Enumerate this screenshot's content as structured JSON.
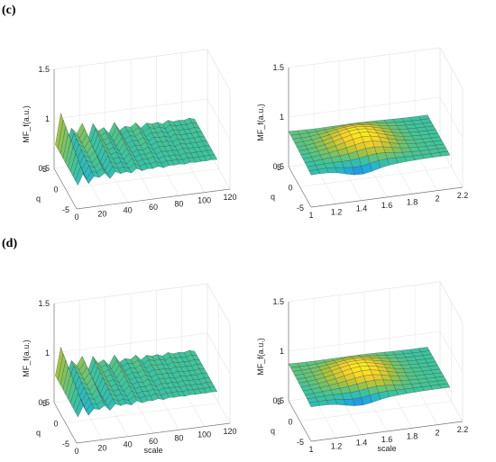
{
  "panel_labels": [
    "(c)",
    "(d)"
  ],
  "chart_data": [
    {
      "id": "c-left",
      "type": "surface3d",
      "panel": "(c)",
      "title": "",
      "xlabel": "",
      "ylabel": "q",
      "zlabel": "MF_f(a.u.)",
      "xlim": [
        0,
        120
      ],
      "xticks": [
        "0",
        "20",
        "40",
        "60",
        "80",
        "100",
        "120"
      ],
      "ylim": [
        -5,
        5
      ],
      "yticks": [
        "-5",
        "0",
        "5"
      ],
      "zlim": [
        0.5,
        1.5
      ],
      "zticks": [
        "0.5",
        "1",
        "1.5"
      ],
      "surface": {
        "style": "jagged",
        "x_range": [
          1,
          110
        ],
        "q_range": [
          -5,
          5
        ],
        "base": 0.82,
        "amplitude": 0.22
      }
    },
    {
      "id": "c-right",
      "type": "surface3d",
      "panel": "(c)",
      "title": "",
      "xlabel": "",
      "ylabel": "q",
      "zlabel": "MF_f(a.u.)",
      "xlim": [
        1,
        2.2
      ],
      "xticks": [
        "1",
        "1.2",
        "1.4",
        "1.6",
        "1.8",
        "2",
        "2.2"
      ],
      "ylim": [
        -5,
        5
      ],
      "yticks": [
        "-5",
        "0",
        "5"
      ],
      "zlim": [
        0.5,
        1.5
      ],
      "zticks": [
        "0.5",
        "1",
        "1.5"
      ],
      "surface": {
        "style": "smooth",
        "x_range": [
          1,
          2.1
        ],
        "q_range": [
          -5,
          5
        ],
        "base": 0.84,
        "amplitude": 0.12
      }
    },
    {
      "id": "d-left",
      "type": "surface3d",
      "panel": "(d)",
      "title": "",
      "xlabel": "scale",
      "ylabel": "q",
      "zlabel": "MF_f(a.u.)",
      "xlim": [
        0,
        120
      ],
      "xticks": [
        "0",
        "20",
        "40",
        "60",
        "80",
        "100",
        "120"
      ],
      "ylim": [
        -5,
        5
      ],
      "yticks": [
        "-5",
        "0",
        "5"
      ],
      "zlim": [
        0.5,
        1.5
      ],
      "zticks": [
        "0.5",
        "1",
        "1.5"
      ],
      "surface": {
        "style": "jagged",
        "x_range": [
          1,
          110
        ],
        "q_range": [
          -5,
          5
        ],
        "base": 0.84,
        "amplitude": 0.2
      }
    },
    {
      "id": "d-right",
      "type": "surface3d",
      "panel": "(d)",
      "title": "",
      "xlabel": "scale",
      "ylabel": "q",
      "zlabel": "MF_f(a.u.)",
      "xlim": [
        1,
        2.2
      ],
      "xticks": [
        "1",
        "1.2",
        "1.4",
        "1.6",
        "1.8",
        "2",
        "2.2"
      ],
      "ylim": [
        -5,
        5
      ],
      "yticks": [
        "-5",
        "0",
        "5"
      ],
      "zlim": [
        0.5,
        1.5
      ],
      "zticks": [
        "0.5",
        "1",
        "1.5"
      ],
      "surface": {
        "style": "smooth",
        "x_range": [
          1,
          2.1
        ],
        "q_range": [
          -5,
          5
        ],
        "base": 0.86,
        "amplitude": 0.1
      }
    }
  ],
  "colormap": [
    "#3e26a8",
    "#2f6ff0",
    "#1fb0d9",
    "#3dc49c",
    "#a6c33e",
    "#f8d02a",
    "#f9fb15"
  ]
}
